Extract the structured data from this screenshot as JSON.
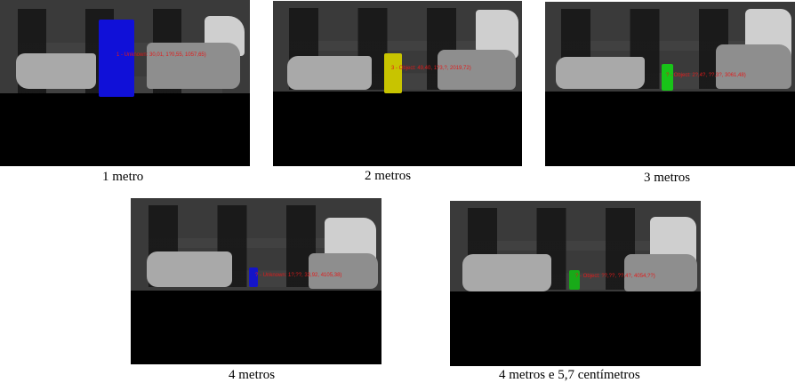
{
  "panels": [
    {
      "caption": "1 metro",
      "label": "1 - Unknown: 30,01, 1?0,55, 1057,65)",
      "marker_color": "#1010d8"
    },
    {
      "caption": "2 metros",
      "label": "3 - Object: 49,40, 1?3,?, 2019,72)",
      "marker_color": "#c8c400"
    },
    {
      "caption": "3 metros",
      "label": "? - Object: 2?,4?, ??,3?, 3061,48)",
      "marker_color": "#18c418"
    },
    {
      "caption": "4 metros",
      "label": "? - Unknown: 1?,??, 33,92, 4105,38)",
      "marker_color": "#1414c8"
    },
    {
      "caption": "4 metros e 5,7 centímetros",
      "label": "? - Object: ??,??, ??,4?, 4054,??)",
      "marker_color": "#18aa18"
    }
  ]
}
